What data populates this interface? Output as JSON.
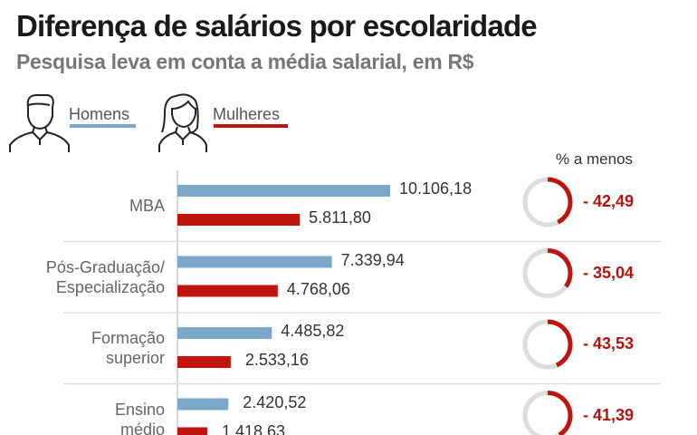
{
  "title": "Diferença de salários por escolaridade",
  "subtitle": "Pesquisa leva em conta a média salarial, em R$",
  "legend": [
    {
      "label": "Homens",
      "color": "#7ba7c9",
      "icon": "man-outline-icon"
    },
    {
      "label": "Mulheres",
      "color": "#c0150f",
      "icon": "woman-outline-icon"
    }
  ],
  "chart_data": {
    "type": "bar",
    "orientation": "horizontal",
    "percent_column_title": "% a menos",
    "categories": [
      "MBA",
      "Pós-Graduação/\nEspecialização",
      "Formação\nsuperior",
      "Ensino\nmédio"
    ],
    "series": [
      {
        "name": "Homens",
        "color": "#7ba7c9",
        "values": [
          10106.18,
          7339.94,
          4485.82,
          2420.52
        ],
        "labels": [
          "10.106,18",
          "7.339,94",
          "4.485,82",
          "2.420,52"
        ]
      },
      {
        "name": "Mulheres",
        "color": "#c0150f",
        "values": [
          5811.8,
          4768.06,
          2533.16,
          1418.63
        ],
        "labels": [
          "5.811,80",
          "4.768,06",
          "2.533,16",
          "1.418,63"
        ]
      }
    ],
    "percent_less": [
      42.49,
      35.04,
      43.53,
      41.39
    ],
    "percent_labels": [
      "- 42,49",
      "- 35,04",
      "- 43,53",
      "- 41,39"
    ],
    "ring_colors": {
      "track": "#dddddd",
      "fill": "#c0150f"
    },
    "grid": false
  }
}
